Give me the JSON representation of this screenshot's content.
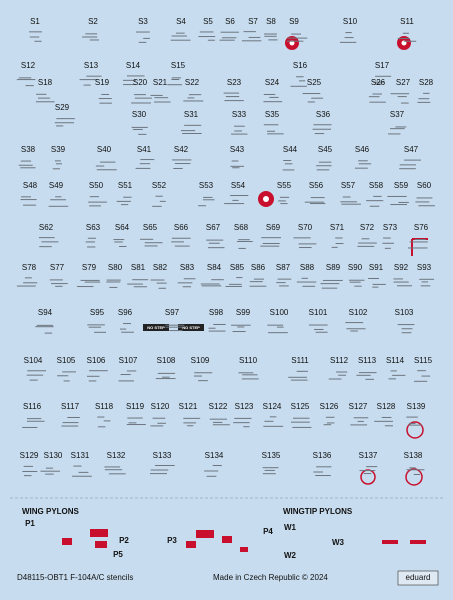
{
  "sheet": {
    "stencils": [
      "S1",
      "S2",
      "S3",
      "S4",
      "S5",
      "S6",
      "S7",
      "S8",
      "S9",
      "S10",
      "S11",
      "S12",
      "S13",
      "S14",
      "S15",
      "S16",
      "S17",
      "S18",
      "S19",
      "S20",
      "S21",
      "S22",
      "S23",
      "S24",
      "S25",
      "S26",
      "S27",
      "S28",
      "S29",
      "S30",
      "S31",
      "S33",
      "S35",
      "S36",
      "S37",
      "S38",
      "S39",
      "S40",
      "S41",
      "S42",
      "S43",
      "S44",
      "S45",
      "S46",
      "S47",
      "S48",
      "S49",
      "S50",
      "S51",
      "S52",
      "S53",
      "S54",
      "S55",
      "S56",
      "S57",
      "S58",
      "S59",
      "S60",
      "S62",
      "S63",
      "S64",
      "S65",
      "S66",
      "S67",
      "S68",
      "S69",
      "S70",
      "S71",
      "S72",
      "S73",
      "S76",
      "S78",
      "S77",
      "S79",
      "S80",
      "S81",
      "S82",
      "S83",
      "S84",
      "S85",
      "S86",
      "S87",
      "S88",
      "S89",
      "S90",
      "S91",
      "S92",
      "S93",
      "S94",
      "S95",
      "S96",
      "S97",
      "S98",
      "S99",
      "S100",
      "S101",
      "S102",
      "S103",
      "S104",
      "S105",
      "S106",
      "S107",
      "S108",
      "S109",
      "S110",
      "S111",
      "S112",
      "S113",
      "S114",
      "S115",
      "S116",
      "S117",
      "S118",
      "S119",
      "S120",
      "S121",
      "S122",
      "S123",
      "S124",
      "S125",
      "S126",
      "S127",
      "S128",
      "S139",
      "S129",
      "S130",
      "S131",
      "S132",
      "S133",
      "S134",
      "S135",
      "S136",
      "S137",
      "S138"
    ],
    "no_step": [
      "NO STEP",
      "NO STEP"
    ],
    "pylons": {
      "wing_title": "WING PYLONS",
      "wingtip_title": "WINGTIP PYLONS",
      "labels": [
        "P1",
        "P2",
        "P3",
        "P4",
        "P5",
        "W1",
        "W2",
        "W3"
      ]
    }
  },
  "footer": {
    "code": "D48115-OBT1 F-104A/C stencils",
    "made_in": "Made in Czech Republic  © 2024",
    "brand": "eduard"
  }
}
